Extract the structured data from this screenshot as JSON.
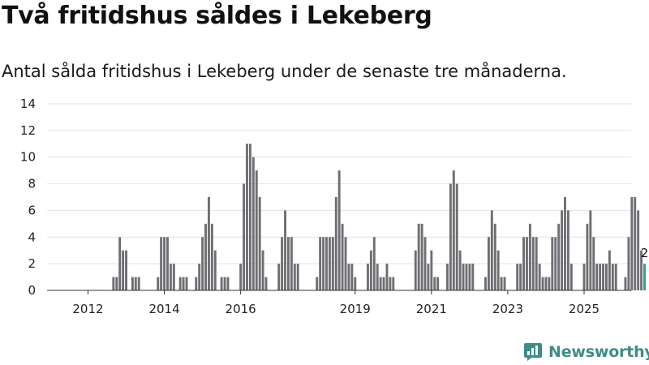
{
  "title": "Två fritidshus såldes i Lekeberg",
  "subtitle": "Antal sålda fritidshus i Lekeberg under de senaste tre månaderna.",
  "brand": "Newsworthy",
  "colors": {
    "bar": "#6e6e73",
    "highlight": "#2a9d8f",
    "grid": "#e2e2e2",
    "brand": "#3f8c87"
  },
  "chart_data": {
    "type": "bar",
    "title": "Två fritidshus såldes i Lekeberg",
    "xlabel": "",
    "ylabel": "",
    "ylim": [
      0,
      14
    ],
    "yticks": [
      0,
      2,
      4,
      6,
      8,
      10,
      12,
      14
    ],
    "xticks": [
      "2012",
      "2014",
      "2016",
      "2019",
      "2021",
      "2023",
      "2025"
    ],
    "start": "2011-01",
    "interval": "month, rolling 3-month count",
    "values": [
      0,
      0,
      0,
      0,
      0,
      0,
      0,
      0,
      0,
      0,
      0,
      0,
      0,
      0,
      0,
      0,
      0,
      0,
      0,
      0,
      1,
      1,
      4,
      3,
      3,
      0,
      1,
      1,
      1,
      0,
      0,
      0,
      0,
      0,
      1,
      4,
      4,
      4,
      2,
      2,
      0,
      1,
      1,
      1,
      0,
      0,
      1,
      2,
      4,
      5,
      7,
      5,
      3,
      0,
      1,
      1,
      1,
      0,
      0,
      0,
      2,
      8,
      11,
      11,
      10,
      9,
      7,
      3,
      1,
      0,
      0,
      0,
      2,
      4,
      6,
      4,
      4,
      2,
      2,
      0,
      0,
      0,
      0,
      0,
      1,
      4,
      4,
      4,
      4,
      4,
      7,
      9,
      5,
      4,
      2,
      2,
      1,
      0,
      0,
      0,
      2,
      3,
      4,
      2,
      1,
      1,
      2,
      1,
      1,
      0,
      0,
      0,
      0,
      0,
      0,
      3,
      5,
      5,
      4,
      2,
      3,
      1,
      1,
      0,
      0,
      2,
      8,
      9,
      8,
      3,
      2,
      2,
      2,
      2,
      0,
      0,
      0,
      1,
      4,
      6,
      5,
      3,
      1,
      1,
      0,
      0,
      0,
      2,
      2,
      4,
      4,
      5,
      4,
      4,
      2,
      1,
      1,
      1,
      4,
      4,
      5,
      6,
      7,
      6,
      2,
      0,
      0,
      0,
      2,
      5,
      6,
      4,
      2,
      2,
      2,
      2,
      3,
      2,
      2,
      0,
      0,
      1,
      4,
      7,
      7,
      6,
      3,
      2
    ],
    "highlight_last": true,
    "last_value_label": "2"
  }
}
